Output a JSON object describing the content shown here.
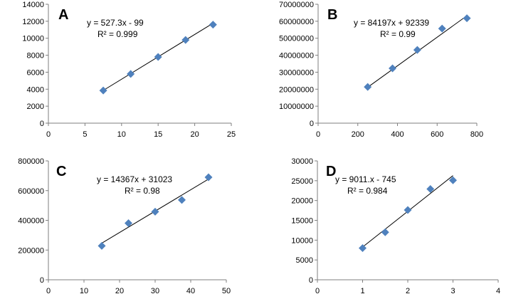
{
  "chart_data": [
    {
      "type": "scatter",
      "panel_label": "A",
      "x": [
        7.5,
        11.25,
        15,
        18.75,
        22.5
      ],
      "y": [
        3850,
        5800,
        7800,
        9800,
        11600
      ],
      "xlim": [
        0,
        25
      ],
      "xticks": [
        0,
        5,
        10,
        15,
        20,
        25
      ],
      "xtick_labels": [
        "0",
        "5",
        "10",
        "15",
        "20",
        "25"
      ],
      "ylim": [
        0,
        14000
      ],
      "yticks": [
        0,
        2000,
        4000,
        6000,
        8000,
        10000,
        12000,
        14000
      ],
      "ytick_labels": [
        "0",
        "2000",
        "4000",
        "6000",
        "8000",
        "10000",
        "12000",
        "14000"
      ],
      "trendline": {
        "slope": 527.3,
        "intercept": -99,
        "equation": "y = 527.3x - 99",
        "r2": "R² = 0.999"
      },
      "marker_color": "#4f81bd",
      "grid": false
    },
    {
      "type": "scatter",
      "panel_label": "B",
      "x": [
        250,
        375,
        500,
        625,
        750
      ],
      "y": [
        21300000,
        32300000,
        43100000,
        55700000,
        61800000
      ],
      "xlim": [
        0,
        800
      ],
      "xticks": [
        0,
        200,
        400,
        600,
        800
      ],
      "xtick_labels": [
        "0",
        "200",
        "400",
        "600",
        "800"
      ],
      "ylim": [
        0,
        70000000
      ],
      "yticks": [
        0,
        10000000,
        20000000,
        30000000,
        40000000,
        50000000,
        60000000,
        70000000
      ],
      "ytick_labels": [
        "0",
        "10000000",
        "20000000",
        "30000000",
        "40000000",
        "50000000",
        "60000000",
        "70000000"
      ],
      "trendline": {
        "slope": 84197,
        "intercept": 92339,
        "equation": "y = 84197x + 92339",
        "r2": "R² = 0.99"
      },
      "marker_color": "#4f81bd",
      "grid": false
    },
    {
      "type": "scatter",
      "panel_label": "C",
      "x": [
        15,
        22.5,
        30,
        37.5,
        45
      ],
      "y": [
        228000,
        381000,
        458000,
        537000,
        690000
      ],
      "xlim": [
        0,
        50
      ],
      "xticks": [
        0,
        10,
        20,
        30,
        40,
        50
      ],
      "xtick_labels": [
        "0",
        "10",
        "20",
        "30",
        "40",
        "50"
      ],
      "ylim": [
        0,
        800000
      ],
      "yticks": [
        0,
        200000,
        400000,
        600000,
        800000
      ],
      "ytick_labels": [
        "0",
        "200000",
        "400000",
        "600000",
        "800000"
      ],
      "trendline": {
        "slope": 14367,
        "intercept": 31023,
        "equation": "y = 14367x + 31023",
        "r2": "R² = 0.98"
      },
      "marker_color": "#4f81bd",
      "grid": false
    },
    {
      "type": "scatter",
      "panel_label": "D",
      "x": [
        1,
        1.5,
        2,
        2.5,
        3
      ],
      "y": [
        8000,
        12000,
        17600,
        22900,
        25100
      ],
      "xlim": [
        0,
        4
      ],
      "xticks": [
        0,
        1,
        2,
        3,
        4
      ],
      "xtick_labels": [
        "0",
        "1",
        "2",
        "3",
        "4"
      ],
      "ylim": [
        0,
        30000
      ],
      "yticks": [
        0,
        5000,
        10000,
        15000,
        20000,
        25000,
        30000
      ],
      "ytick_labels": [
        "0",
        "5000",
        "10000",
        "15000",
        "20000",
        "25000",
        "30000"
      ],
      "trendline": {
        "slope": 9011,
        "intercept": -745,
        "equation": "y = 9011.x - 745",
        "r2": "R² = 0.984"
      },
      "marker_color": "#4f81bd",
      "grid": false
    }
  ]
}
